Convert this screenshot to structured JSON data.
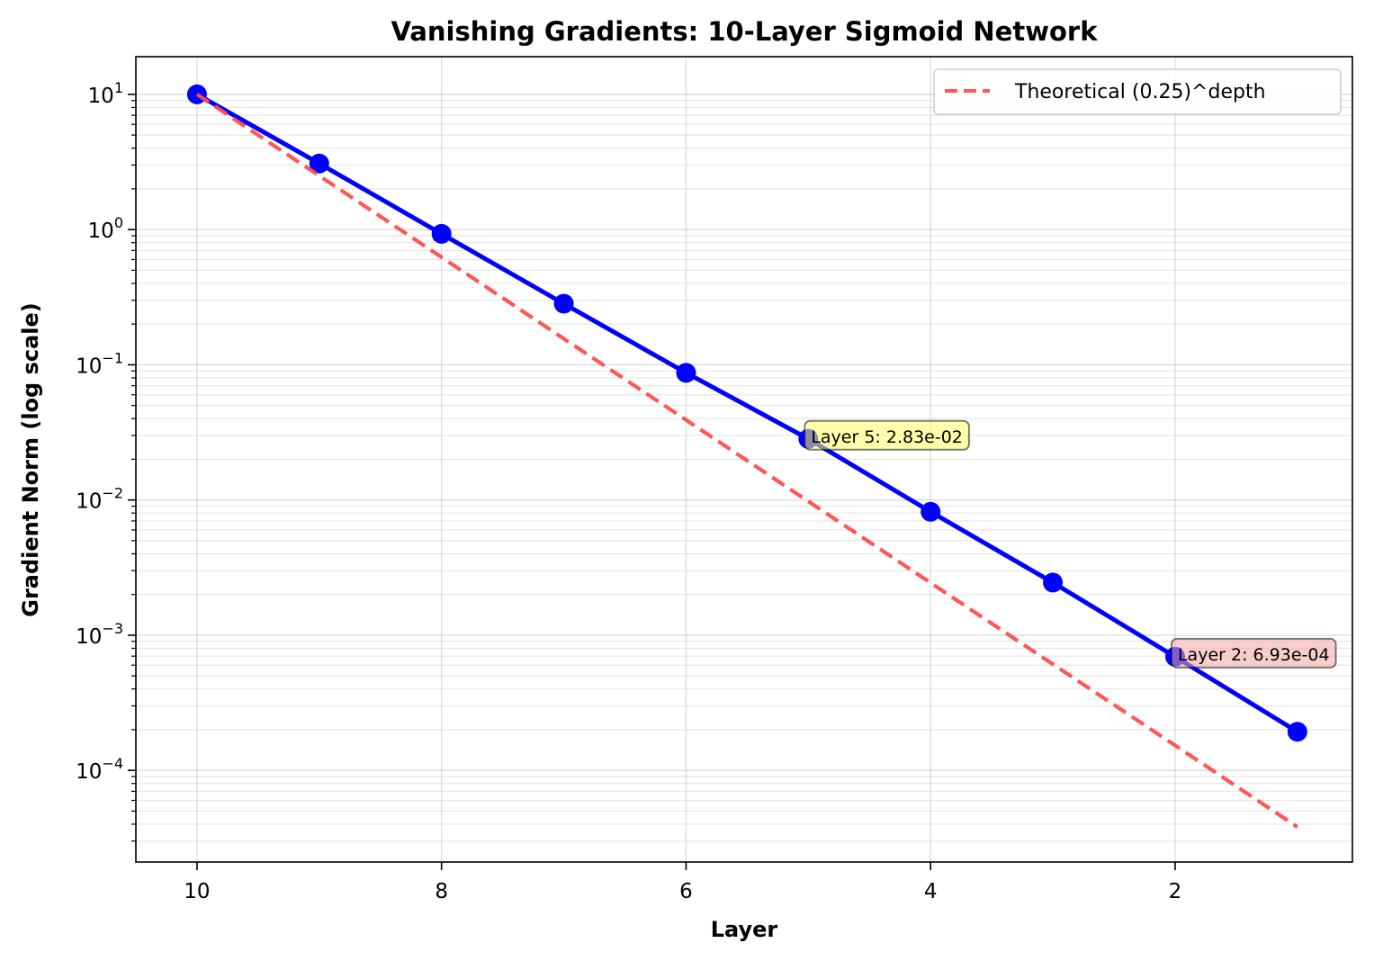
{
  "chart_data": {
    "type": "line",
    "title": "Vanishing Gradients: 10-Layer Sigmoid Network",
    "xlabel": "Layer",
    "ylabel": "Gradient Norm (log scale)",
    "x_inverted": true,
    "xlim": [
      10.5,
      0.55
    ],
    "ylim": [
      2.1e-05,
      19
    ],
    "yscale": "log",
    "grid": true,
    "legend_position": "top-right",
    "x_ticks": [
      10,
      8,
      6,
      4,
      2
    ],
    "y_ticks": [
      {
        "value": 10,
        "base": "10",
        "exp": "1"
      },
      {
        "value": 1,
        "base": "10",
        "exp": "0"
      },
      {
        "value": 0.1,
        "base": "10",
        "exp": "−1"
      },
      {
        "value": 0.01,
        "base": "10",
        "exp": "−2"
      },
      {
        "value": 0.001,
        "base": "10",
        "exp": "−3"
      },
      {
        "value": 0.0001,
        "base": "10",
        "exp": "−4"
      }
    ],
    "series": [
      {
        "color": "#0000ff",
        "style": "solid-markers",
        "x": [
          10,
          9,
          8,
          7,
          6,
          5,
          4,
          3,
          2,
          1
        ],
        "values": [
          10,
          3.08,
          0.93,
          0.283,
          0.0872,
          0.0283,
          0.00818,
          0.00245,
          0.000693,
          0.000193
        ]
      },
      {
        "name": "Theoretical (0.25)^depth",
        "color": "#ff4d4d",
        "style": "dashed",
        "x": [
          10,
          9,
          8,
          7,
          6,
          5,
          4,
          3,
          2,
          1
        ],
        "values": [
          10,
          2.5,
          0.625,
          0.156,
          0.0391,
          0.00977,
          0.00244,
          0.00061,
          0.000153,
          3.81e-05
        ]
      }
    ],
    "annotations": [
      {
        "text": "Layer 5: 2.83e-02",
        "x": 5,
        "y": 0.0283,
        "color": "#ffff66"
      },
      {
        "text": "Layer 2: 6.93e-04",
        "x": 2,
        "y": 0.000693,
        "color": "#f4a6a6"
      }
    ]
  }
}
